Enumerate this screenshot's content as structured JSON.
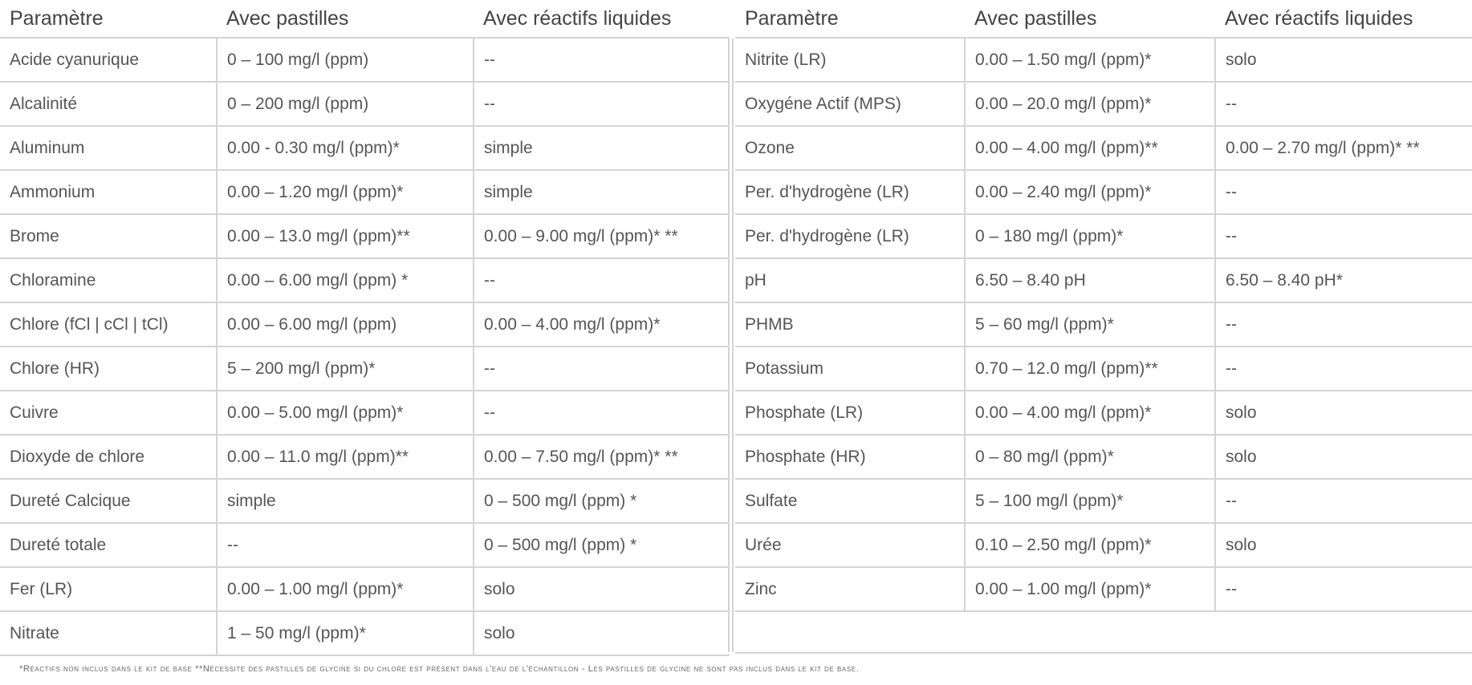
{
  "headers": [
    "Paramètre",
    "Avec pastilles",
    "Avec réactifs liquides"
  ],
  "left_rows": [
    [
      "Acide cyanurique",
      "0 – 100 mg/l (ppm)",
      "--"
    ],
    [
      "Alcalinité",
      "0 – 200 mg/l (ppm)",
      "--"
    ],
    [
      "Aluminum",
      "0.00 - 0.30 mg/l (ppm)*",
      "simple"
    ],
    [
      "Ammonium",
      "0.00 – 1.20 mg/l (ppm)*",
      "simple"
    ],
    [
      "Brome",
      "0.00 – 13.0 mg/l (ppm)**",
      "0.00 – 9.00 mg/l (ppm)* **"
    ],
    [
      "Chloramine",
      "0.00 – 6.00 mg/l (ppm) *",
      "--"
    ],
    [
      "Chlore (fCl | cCl | tCl)",
      "0.00 – 6.00 mg/l (ppm)",
      "0.00 – 4.00 mg/l (ppm)*"
    ],
    [
      "Chlore (HR)",
      "5 – 200 mg/l (ppm)*",
      "--"
    ],
    [
      "Cuivre",
      "0.00 – 5.00 mg/l (ppm)*",
      "--"
    ],
    [
      "Dioxyde de chlore",
      "0.00 – 11.0 mg/l (ppm)**",
      "0.00 – 7.50 mg/l (ppm)* **"
    ],
    [
      "Dureté Calcique",
      "simple",
      "0 – 500 mg/l (ppm) *"
    ],
    [
      "Dureté totale",
      "--",
      "0 – 500 mg/l (ppm) *"
    ],
    [
      "Fer (LR)",
      "0.00 – 1.00 mg/l (ppm)*",
      "solo"
    ],
    [
      "Nitrate",
      "1 – 50 mg/l (ppm)*",
      "solo"
    ]
  ],
  "right_rows": [
    [
      "Nitrite (LR)",
      "0.00 – 1.50 mg/l (ppm)*",
      "solo"
    ],
    [
      "Oxygéne Actif (MPS)",
      "0.00 – 20.0 mg/l (ppm)*",
      "--"
    ],
    [
      "Ozone",
      "0.00 – 4.00 mg/l (ppm)**",
      "0.00 – 2.70 mg/l (ppm)* **"
    ],
    [
      "Per. d'hydrogène (LR)",
      "0.00 – 2.40 mg/l (ppm)*",
      "--"
    ],
    [
      "Per. d'hydrogène (LR)",
      "0 – 180 mg/l (ppm)*",
      "--"
    ],
    [
      "pH",
      "6.50 – 8.40 pH",
      "6.50 – 8.40 pH*"
    ],
    [
      "PHMB",
      "5 – 60 mg/l (ppm)*",
      "--"
    ],
    [
      "Potassium",
      "0.70 – 12.0 mg/l (ppm)**",
      "--"
    ],
    [
      "Phosphate (LR)",
      "0.00 – 4.00 mg/l (ppm)*",
      "solo"
    ],
    [
      "Phosphate (HR)",
      "0 – 80 mg/l (ppm)*",
      "solo"
    ],
    [
      "Sulfate",
      "5 – 100 mg/l (ppm)*",
      "--"
    ],
    [
      "Urée",
      "0.10 – 2.50 mg/l (ppm)*",
      "solo"
    ],
    [
      "Zinc",
      "0.00 – 1.00 mg/l (ppm)*",
      "--"
    ]
  ],
  "footnote": "*Réactifs non inclus dans le kit de base **Nécessite des pastilles de glycine si du chlore est présent dans l'eau de l'échantillon - Les pastilles de glycine ne sont pas inclus dans le kit de base."
}
